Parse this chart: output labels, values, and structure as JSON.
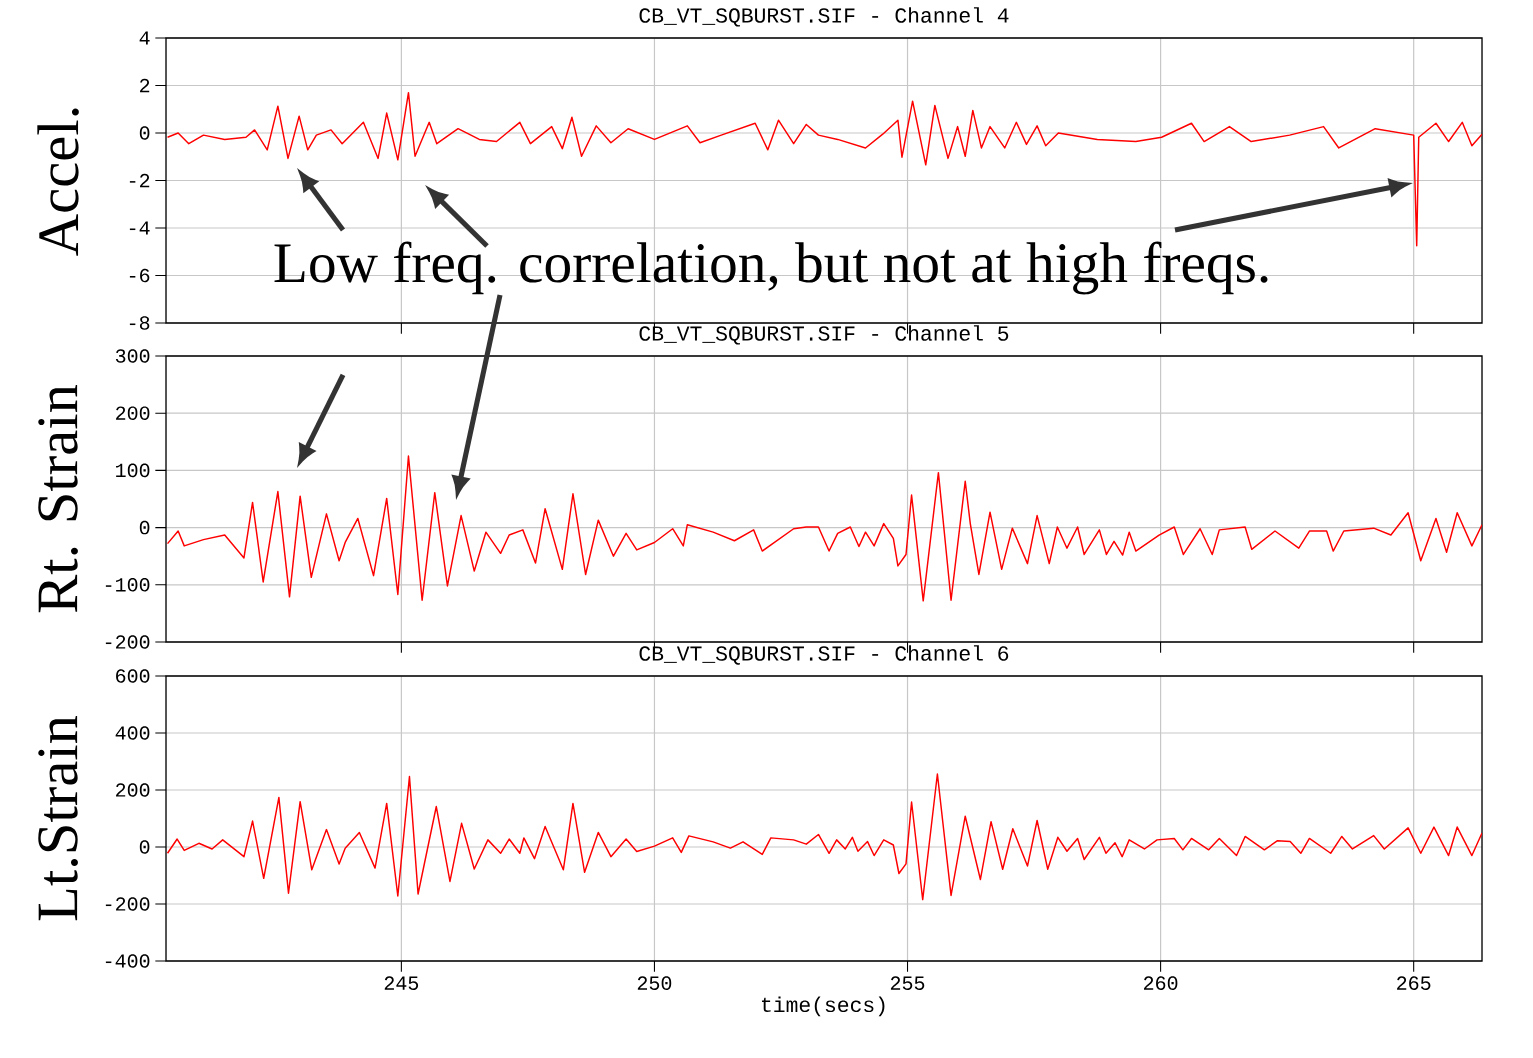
{
  "chart_data": [
    {
      "type": "line",
      "title": "CB_VT_SQBURST.SIF - Channel 4",
      "ylabel": "Accel.",
      "xlim": [
        240.35,
        266.35
      ],
      "ylim": [
        -8,
        4
      ],
      "xticks": [
        245,
        250,
        255,
        260,
        265
      ],
      "yticks": [
        -8,
        -6,
        -4,
        -2,
        0,
        2,
        4
      ],
      "grid": true,
      "tick_labels": "y",
      "annotations": [
        "Low freq. correlation, but not at high freqs."
      ],
      "x": [
        240.38,
        240.59,
        240.8,
        241.09,
        241.51,
        241.93,
        242.1,
        242.35,
        242.56,
        242.76,
        242.98,
        243.15,
        243.32,
        243.61,
        243.83,
        244.25,
        244.54,
        244.71,
        244.93,
        245.14,
        245.27,
        245.55,
        245.7,
        246.12,
        246.54,
        246.88,
        247.34,
        247.55,
        247.97,
        248.18,
        248.37,
        248.56,
        248.85,
        249.14,
        249.48,
        250.0,
        250.65,
        250.9,
        251.32,
        251.99,
        252.24,
        252.45,
        252.75,
        253.0,
        253.24,
        253.62,
        254.17,
        254.51,
        254.81,
        254.89,
        255.1,
        255.36,
        255.54,
        255.8,
        255.99,
        256.14,
        256.29,
        256.46,
        256.63,
        256.92,
        257.15,
        257.35,
        257.56,
        257.73,
        257.98,
        258.75,
        259.51,
        260.02,
        260.61,
        260.86,
        261.36,
        261.79,
        262.55,
        263.22,
        263.52,
        264.24,
        265.0,
        265.06,
        265.1,
        265.44,
        265.69,
        265.96,
        266.15,
        266.35
      ],
      "series": [
        {
          "color": "#ff0000",
          "values": [
            -0.18,
            0,
            -0.45,
            -0.09,
            -0.27,
            -0.18,
            0.13,
            -0.71,
            1.13,
            -1.07,
            0.71,
            -0.71,
            -0.09,
            0.13,
            -0.45,
            0.45,
            -1.07,
            0.84,
            -1.13,
            1.7,
            -0.98,
            0.45,
            -0.45,
            0.18,
            -0.27,
            -0.36,
            0.45,
            -0.45,
            0.27,
            -0.66,
            0.66,
            -0.98,
            0.3,
            -0.41,
            0.18,
            -0.27,
            0.3,
            -0.41,
            -0.09,
            0.41,
            -0.71,
            0.54,
            -0.45,
            0.36,
            -0.09,
            -0.27,
            -0.63,
            -0.05,
            0.54,
            -1.02,
            1.34,
            -1.34,
            1.16,
            -1.07,
            0.27,
            -0.98,
            0.95,
            -0.63,
            0.27,
            -0.63,
            0.45,
            -0.48,
            0.3,
            -0.54,
            0,
            -0.27,
            -0.36,
            -0.18,
            0.41,
            -0.36,
            0.27,
            -0.36,
            -0.09,
            0.27,
            -0.63,
            0.18,
            -0.09,
            -4.75,
            -0.18,
            0.41,
            -0.36,
            0.45,
            -0.54,
            -0.05
          ]
        }
      ]
    },
    {
      "type": "line",
      "title": "CB_VT_SQBURST.SIF - Channel 5",
      "ylabel": "Rt. Strain",
      "xlim": [
        240.35,
        266.35
      ],
      "ylim": [
        -200,
        300
      ],
      "xticks": [
        245,
        250,
        255,
        260,
        265
      ],
      "yticks": [
        -200,
        -100,
        0,
        100,
        200,
        300
      ],
      "grid": true,
      "tick_labels": "y",
      "x": [
        240.38,
        240.59,
        240.71,
        241.09,
        241.51,
        241.89,
        242.06,
        242.27,
        242.56,
        242.79,
        243.0,
        243.22,
        243.52,
        243.77,
        243.89,
        244.14,
        244.45,
        244.71,
        244.93,
        245.14,
        245.41,
        245.66,
        245.91,
        246.18,
        246.44,
        246.67,
        246.96,
        247.13,
        247.4,
        247.65,
        247.84,
        248.18,
        248.39,
        248.64,
        248.89,
        249.19,
        249.44,
        249.65,
        250.0,
        250.36,
        250.57,
        250.65,
        251.16,
        251.58,
        251.96,
        252.13,
        252.75,
        253.0,
        253.24,
        253.45,
        253.62,
        253.87,
        254.04,
        254.17,
        254.34,
        254.53,
        254.72,
        254.81,
        254.97,
        255.08,
        255.31,
        255.61,
        255.86,
        256.14,
        256.24,
        256.41,
        256.63,
        256.86,
        257.07,
        257.37,
        257.56,
        257.8,
        257.96,
        258.15,
        258.36,
        258.49,
        258.79,
        258.93,
        259.08,
        259.25,
        259.38,
        259.51,
        259.97,
        260.27,
        260.45,
        260.78,
        261.02,
        261.16,
        261.67,
        261.8,
        262.26,
        262.73,
        262.94,
        263.28,
        263.41,
        263.62,
        264.21,
        264.55,
        264.89,
        265.14,
        265.44,
        265.65,
        265.86,
        266.15,
        266.35
      ],
      "series": [
        {
          "color": "#ff0000",
          "values": [
            -28,
            -6,
            -32,
            -21,
            -13,
            -53,
            44,
            -95,
            63,
            -121,
            55,
            -87,
            24,
            -58,
            -26,
            16,
            -84,
            51,
            -117,
            125,
            -127,
            61,
            -102,
            21,
            -76,
            -8,
            -45,
            -13,
            -4,
            -62,
            33,
            -73,
            59,
            -82,
            13,
            -50,
            -10,
            -39,
            -26,
            -2,
            -32,
            5,
            -8,
            -23,
            -4,
            -41,
            -2,
            1,
            1,
            -41,
            -10,
            1,
            -33,
            -8,
            -32,
            7,
            -19,
            -67,
            -47,
            57,
            -128,
            96,
            -127,
            81,
            7,
            -82,
            27,
            -73,
            -1,
            -63,
            21,
            -63,
            1,
            -36,
            1,
            -47,
            -4,
            -47,
            -24,
            -48,
            -8,
            -41,
            -13,
            1,
            -47,
            -2,
            -47,
            -4,
            1,
            -38,
            -6,
            -36,
            -6,
            -6,
            -41,
            -6,
            -1,
            -13,
            26,
            -58,
            16,
            -43,
            26,
            -32,
            5
          ]
        }
      ]
    },
    {
      "type": "line",
      "title": "CB_VT_SQBURST.SIF - Channel 6",
      "ylabel": "Lt.Strain",
      "xlabel": "time(secs)",
      "xlim": [
        240.35,
        266.35
      ],
      "ylim": [
        -400,
        600
      ],
      "xticks": [
        245,
        250,
        255,
        260,
        265
      ],
      "yticks": [
        -400,
        -200,
        0,
        200,
        400,
        600
      ],
      "grid": true,
      "x": [
        240.38,
        240.57,
        240.71,
        241.0,
        241.26,
        241.47,
        241.89,
        242.06,
        242.28,
        242.58,
        242.77,
        243.0,
        243.23,
        243.52,
        243.77,
        243.89,
        244.17,
        244.48,
        244.71,
        244.93,
        245.16,
        245.33,
        245.69,
        245.96,
        246.19,
        246.44,
        246.71,
        246.96,
        247.13,
        247.34,
        247.42,
        247.63,
        247.84,
        248.2,
        248.39,
        248.62,
        248.89,
        249.14,
        249.44,
        249.65,
        250.0,
        250.36,
        250.53,
        250.68,
        251.16,
        251.5,
        251.75,
        252.13,
        252.3,
        252.75,
        253.0,
        253.24,
        253.45,
        253.6,
        253.77,
        253.91,
        254.02,
        254.21,
        254.34,
        254.53,
        254.72,
        254.83,
        254.97,
        255.08,
        255.3,
        255.59,
        255.86,
        256.14,
        256.44,
        256.65,
        256.88,
        257.08,
        257.37,
        257.56,
        257.77,
        257.97,
        258.15,
        258.36,
        258.49,
        258.79,
        258.92,
        259.1,
        259.24,
        259.38,
        259.68,
        259.93,
        260.27,
        260.44,
        260.61,
        260.95,
        261.16,
        261.5,
        261.67,
        262.05,
        262.31,
        262.56,
        262.77,
        262.94,
        263.36,
        263.58,
        263.79,
        264.21,
        264.42,
        264.89,
        265.14,
        265.4,
        265.69,
        265.86,
        266.15,
        266.35
      ],
      "series": [
        {
          "color": "#ff0000",
          "values": [
            -22,
            28,
            -12,
            13,
            -7,
            25,
            -34,
            91,
            -110,
            174,
            -162,
            159,
            -80,
            61,
            -60,
            -4,
            51,
            -74,
            153,
            -172,
            247,
            -165,
            142,
            -121,
            83,
            -77,
            25,
            -22,
            28,
            -22,
            32,
            -41,
            72,
            -80,
            153,
            -89,
            51,
            -34,
            28,
            -16,
            3,
            32,
            -19,
            39,
            18,
            -4,
            18,
            -26,
            32,
            25,
            10,
            44,
            -22,
            25,
            -7,
            34,
            -15,
            19,
            -30,
            25,
            7,
            -93,
            -59,
            158,
            -185,
            256,
            -170,
            108,
            -114,
            89,
            -78,
            64,
            -67,
            93,
            -78,
            34,
            -15,
            30,
            -44,
            34,
            -22,
            15,
            -34,
            25,
            -7,
            25,
            30,
            -10,
            30,
            -10,
            30,
            -30,
            37,
            -10,
            22,
            19,
            -22,
            30,
            -22,
            37,
            -7,
            40,
            -7,
            67,
            -22,
            70,
            -30,
            70,
            -30,
            49
          ]
        }
      ]
    }
  ]
}
